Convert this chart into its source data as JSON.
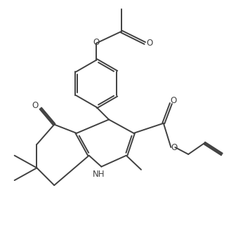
{
  "bg_color": "#ffffff",
  "line_color": "#404040",
  "line_width": 1.4,
  "fig_width": 3.56,
  "fig_height": 3.55,
  "dpi": 100,
  "xlim": [
    0,
    10
  ],
  "ylim": [
    0,
    10
  ]
}
